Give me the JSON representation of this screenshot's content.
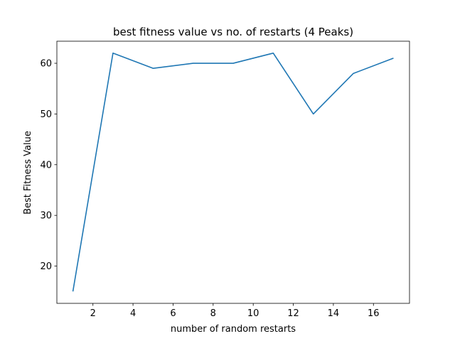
{
  "chart_data": {
    "type": "line",
    "title": "best fitness value vs no. of restarts (4 Peaks)",
    "xlabel": "number of random restarts",
    "ylabel": "Best Fitness Value",
    "x": [
      1,
      3,
      5,
      7,
      9,
      11,
      13,
      15,
      17
    ],
    "series": [
      {
        "values": [
          15,
          62,
          59,
          60,
          60,
          62,
          50,
          58,
          61
        ],
        "color": "#1f77b4"
      }
    ],
    "xlim": [
      0.2,
      17.8
    ],
    "ylim": [
      12.65,
      64.35
    ],
    "xticks": [
      2,
      4,
      6,
      8,
      10,
      12,
      14,
      16
    ],
    "yticks": [
      20,
      30,
      40,
      50,
      60
    ],
    "grid": false,
    "legend": "none"
  }
}
